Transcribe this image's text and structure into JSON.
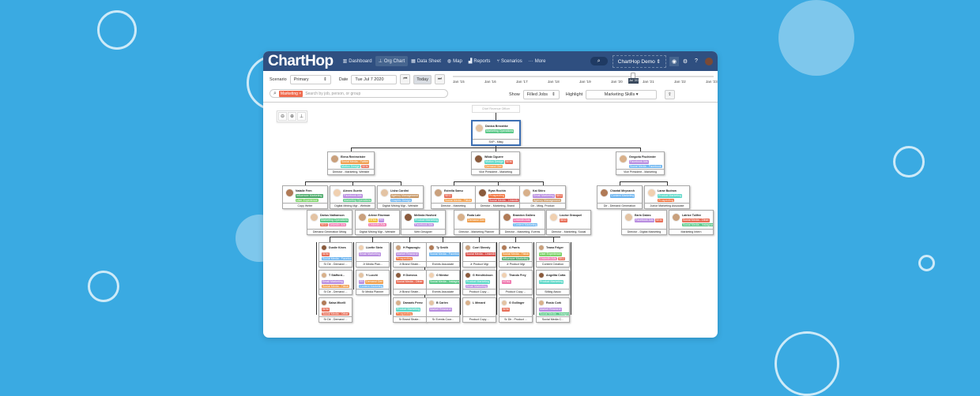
{
  "app": {
    "logo": "ChartHop",
    "nav": [
      {
        "icon": "dashboard-icon",
        "label": "Dashboard"
      },
      {
        "icon": "org-chart-icon",
        "label": "Org Chart",
        "active": true
      },
      {
        "icon": "data-sheet-icon",
        "label": "Data Sheet"
      },
      {
        "icon": "map-icon",
        "label": "Map"
      },
      {
        "icon": "reports-icon",
        "label": "Reports"
      },
      {
        "icon": "scenarios-icon",
        "label": "Scenarios"
      },
      {
        "icon": "more-icon",
        "label": "More"
      }
    ],
    "org_selector": "ChartHop Demo"
  },
  "toolbar": {
    "scenario_label": "Scenario",
    "scenario_value": "Primary",
    "date_label": "Date",
    "date_value": "Tue Jul 7 2020",
    "today": "Today",
    "timeline": [
      "Jan '15",
      "Jan '16",
      "Jan '17",
      "Jan '18",
      "Jan '19",
      "Jan '20",
      "Jan '21",
      "Jan '22",
      "Jan '23"
    ],
    "timeline_marker": "Jul '20",
    "search_chip": "Marketing",
    "search_placeholder": "Search by job, person, or group",
    "show_label": "Show",
    "show_value": "Filled Jobs",
    "highlight_label": "Highlight",
    "highlight_value": "Marketing Skills"
  },
  "colors": {
    "background": "#3aaae2",
    "topbar": "#2f4f80",
    "root_border": "#3c6fb4"
  },
  "chart": {
    "ghost": "Chief Revenue Officer",
    "cards": [
      {
        "name": "Danica Brezahke",
        "tags": [
          [
            "Marketing Operations",
            "#5cc98a"
          ]
        ],
        "title": "SVP - Mktg"
      },
      {
        "name": "Elena Rentmeister",
        "tags": [
          [
            "Social Media - Twitter",
            "#f0a050"
          ],
          [
            "Motion Design",
            "#5fd8c8"
          ],
          [
            "SEM",
            "#e8705a"
          ]
        ],
        "title": "Director - Marketing, Website"
      },
      {
        "name": "Wilda Ciguere",
        "tags": [
          [
            "Motion Design",
            "#5fd8c8"
          ],
          [
            "SEM",
            "#e8705a"
          ],
          [
            "Demand Gen",
            "#f0a050"
          ]
        ],
        "title": "Vice President - Marketing"
      },
      {
        "name": "Gregoria Fischieder",
        "tags": [
          [
            "Facebook Ads",
            "#b98ee0"
          ],
          [
            "Social Media - Facebook",
            "#6fb6f0"
          ]
        ],
        "title": "Vice President - Marketing"
      },
      {
        "name": "Natalie Fern",
        "tags": [
          [
            "Influencer Marketing",
            "#4caa6a"
          ],
          [
            "User Experience",
            "#7ed36a"
          ]
        ],
        "title": "Copy Writer"
      },
      {
        "name": "Alexes Guerin",
        "tags": [
          [
            "Facebook Ads",
            "#b98ee0"
          ],
          [
            "Marketing Operations",
            "#5cc98a"
          ]
        ],
        "title": "Digital Mrktng Mgr - Website"
      },
      {
        "name": "Lisha Cordini",
        "tags": [
          [
            "Agency Management",
            "#c89a6a"
          ],
          [
            "Graphic Design",
            "#6fb6f0"
          ]
        ],
        "title": "Digital Mrktng Mgr - Website"
      },
      {
        "name": "Estrella Samu",
        "tags": [
          [
            "SEO",
            "#e8705a"
          ],
          [
            "Social Media - Tiktok",
            "#f0a050"
          ]
        ],
        "title": "Director - Marketing"
      },
      {
        "name": "Ryan Rochin",
        "tags": [
          [
            "Prospecting",
            "#f0703a"
          ],
          [
            "Social Media - LinkedIn",
            "#d9534f"
          ]
        ],
        "title": "Director - Marketing, Brand"
      },
      {
        "name": "Kai Shiro",
        "tags": [
          [
            "Email Marketing",
            "#b98ee0"
          ],
          [
            "SEO",
            "#e8705a"
          ],
          [
            "Agency Management",
            "#c89a6a"
          ]
        ],
        "title": "Dir - Mktg, Product"
      },
      {
        "name": "Chantal Meynarch",
        "tags": [
          [
            "Content Marketing",
            "#6fb6f0"
          ]
        ],
        "title": "Dir - Demand Generation"
      },
      {
        "name": "Larae Budrow",
        "tags": [
          [
            "Product Marketing",
            "#5fd8c8"
          ],
          [
            "Prospecting",
            "#f0703a"
          ]
        ],
        "title": "Junior Marketing Associate"
      },
      {
        "name": "Darius Nathanson",
        "tags": [
          [
            "Marketing Operations",
            "#5cc98a"
          ],
          [
            "SEO",
            "#e8705a"
          ],
          [
            "LinkedIn Ads",
            "#f07ab0"
          ]
        ],
        "title": "Demand Generation Mrktg"
      },
      {
        "name": "Arlene Riseman",
        "tags": [
          [
            "HTML",
            "#f0c040"
          ],
          [
            "PR",
            "#b98ee0"
          ],
          [
            "LinkedIn Ads",
            "#f07ab0"
          ]
        ],
        "title": "Digital Mrktng Mgr - Website"
      },
      {
        "name": "Melinda Hosford",
        "tags": [
          [
            "Product Marketing",
            "#5fd8c8"
          ],
          [
            "Facebook Ads",
            "#b98ee0"
          ]
        ],
        "title": "Web Designer"
      },
      {
        "name": "Roda Lale",
        "tags": [
          [
            "Demand Gen",
            "#f0a050"
          ]
        ],
        "title": "Director - Marketing Planner"
      },
      {
        "name": "Brandon Gallero",
        "tags": [
          [
            "LinkedIn Ads",
            "#f07ab0"
          ],
          [
            "Content Marketing",
            "#6fb6f0"
          ]
        ],
        "title": "Director - Marketing, Events"
      },
      {
        "name": "Louise Grasquel",
        "tags": [
          [
            "SEO",
            "#e8705a"
          ]
        ],
        "title": "Director - Marketing, Social"
      },
      {
        "name": "Earin Dabec",
        "tags": [
          [
            "Facebook Ads",
            "#b98ee0"
          ],
          [
            "SEM",
            "#e8705a"
          ]
        ],
        "title": "Director - Digital Marketing"
      },
      {
        "name": "Latrice Tolifee",
        "tags": [
          [
            "Social Media - Other",
            "#e8705a"
          ],
          [
            "Social Media - Instagram",
            "#5cc98a"
          ]
        ],
        "title": "Marketing Intern"
      },
      {
        "name": "Dustie Kines",
        "tags": [
          [
            "SEM",
            "#e8705a"
          ],
          [
            "Social Media - Facebook",
            "#6fb6f0"
          ]
        ],
        "title": "Sr Dir - Demand ..."
      },
      {
        "name": "T Stafford...",
        "tags": [
          [
            "Email Marketing",
            "#b98ee0"
          ],
          [
            "Social Media - Tiktok",
            "#f0a050"
          ]
        ],
        "title": "Sr Dir - Demand ..."
      },
      {
        "name": "Salsa Micelli",
        "tags": [
          [
            "SEM",
            "#e8705a"
          ],
          [
            "Social Media - Other",
            "#e8705a"
          ]
        ],
        "title": "Sr Dir - Demand ..."
      },
      {
        "name": "Lizette Stein",
        "tags": [
          [
            "Email Marketing",
            "#b98ee0"
          ]
        ],
        "title": "Jr Media Plan..."
      },
      {
        "name": "Y Lucchi",
        "tags": [
          [
            "PR",
            "#b98ee0"
          ],
          [
            "Demand Gen",
            "#f0a050"
          ],
          [
            "Content Marketing",
            "#6fb6f0"
          ]
        ],
        "title": "Sr Media Planner"
      },
      {
        "name": "H Papazoglu",
        "tags": [
          [
            "Market Research",
            "#b98ee0"
          ],
          [
            "Prospecting",
            "#f0703a"
          ]
        ],
        "title": "Jr Brand Strate..."
      },
      {
        "name": "H Domeca",
        "tags": [
          [
            "Social Media - Other",
            "#e8705a"
          ]
        ],
        "title": "Jr Brand Strate..."
      },
      {
        "name": "Damaris Perez",
        "tags": [
          [
            "Product Marketing",
            "#5fd8c8"
          ],
          [
            "Prospecting",
            "#f0703a"
          ]
        ],
        "title": "Sr Brand Strate..."
      },
      {
        "name": "Ty Smith",
        "tags": [
          [
            "Social Media - Facebook",
            "#6fb6f0"
          ]
        ],
        "title": "Events Associate"
      },
      {
        "name": "O Mentor",
        "tags": [
          [
            "Social Media - Instagram",
            "#5cc98a"
          ]
        ],
        "title": "Events Associate"
      },
      {
        "name": "B Carlen",
        "tags": [
          [
            "Market Research",
            "#b98ee0"
          ]
        ],
        "title": "Sr Events Coor..."
      },
      {
        "name": "Corri Sheedy",
        "tags": [
          [
            "Social Media - LinkedIn",
            "#d9534f"
          ]
        ],
        "title": "Jr Product Mgr"
      },
      {
        "name": "G Hendrickson",
        "tags": [
          [
            "Product Marketing",
            "#5fd8c8"
          ],
          [
            "Email Marketing",
            "#b98ee0"
          ]
        ],
        "title": "Product Copy ..."
      },
      {
        "name": "L Menard",
        "tags": [],
        "title": "Product Copy ..."
      },
      {
        "name": "A Parris",
        "tags": [
          [
            "Social Media - Tiktok",
            "#f0a050"
          ],
          [
            "Influencer Marketing",
            "#4caa6a"
          ]
        ],
        "title": "Jr Product Mgr"
      },
      {
        "name": "Thando Frey",
        "tags": [
          [
            "HTML",
            "#f07ab0"
          ]
        ],
        "title": "Product Copy ..."
      },
      {
        "name": "G Gollinger",
        "tags": [
          [
            "SEM",
            "#e8705a"
          ]
        ],
        "title": "Sr Dir - Product ..."
      },
      {
        "name": "Teana Felger",
        "tags": [
          [
            "User Experience",
            "#7ed36a"
          ],
          [
            "LinkedIn Ads",
            "#f07ab0"
          ],
          [
            "SEO",
            "#e8705a"
          ]
        ],
        "title": "Content Creation"
      },
      {
        "name": "Angelita Cotta",
        "tags": [
          [
            "Product Marketing",
            "#5fd8c8"
          ]
        ],
        "title": "SMktg Assoc"
      },
      {
        "name": "Rosio Cork",
        "tags": [
          [
            "Market Research",
            "#b98ee0"
          ],
          [
            "Social Media - Instagram",
            "#5cc98a"
          ]
        ],
        "title": "Social Media C..."
      }
    ]
  }
}
